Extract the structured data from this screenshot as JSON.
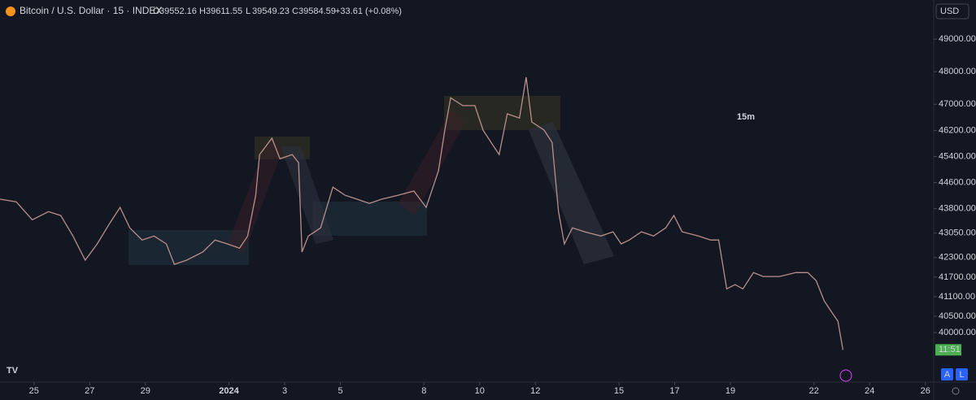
{
  "chart_data": {
    "type": "line",
    "title": "Bitcoin / U.S. Dollar · 15 · INDEX",
    "ohlc_labels": [
      "O",
      "H",
      "L",
      "C"
    ],
    "ohlc_values": [
      39552.16,
      39611.55,
      39549.23,
      39584.59
    ],
    "change": "+33.61 (+0.08%)",
    "currency": "USD",
    "annotation": "15m",
    "countdown": "11:51",
    "buttons": [
      "A",
      "L"
    ],
    "color": "#b98f8c",
    "x": [
      -1.22,
      -0.64,
      -0.06,
      0.52,
      0.96,
      1.4,
      1.84,
      2.27,
      2.71,
      3.09,
      3.44,
      3.88,
      4.31,
      4.75,
      5.04,
      5.48,
      6.06,
      6.5,
      6.94,
      7.38,
      7.67,
      7.96,
      8.1,
      8.54,
      8.83,
      9.27,
      9.5,
      9.62,
      9.85,
      10.29,
      10.73,
      11.17,
      11.6,
      12.04,
      12.48,
      13.06,
      13.64,
      14.08,
      14.52,
      14.75,
      14.96,
      15.39,
      15.83,
      16.12,
      16.41,
      16.7,
      16.99,
      17.43,
      17.67,
      17.87,
      18.31,
      18.6,
      18.83,
      19.04,
      19.33,
      19.77,
      20.35,
      20.79,
      21.08,
      21.37,
      21.81,
      22.24,
      22.68,
      22.97,
      23.27,
      23.85,
      24.29,
      24.58,
      24.87,
      25.17,
      25.45,
      25.83,
      26.18,
      26.76,
      27.35,
      27.78,
      28.08,
      28.37,
      28.66,
      28.86,
      29.04
    ],
    "values": [
      44090,
      44010,
      43460,
      43710,
      43590,
      42960,
      42220,
      42720,
      43340,
      43840,
      43210,
      42840,
      42960,
      42720,
      42090,
      42220,
      42470,
      42840,
      42720,
      42590,
      42960,
      44210,
      45460,
      45960,
      45330,
      45460,
      45210,
      42470,
      42960,
      43210,
      44460,
      44210,
      44090,
      43960,
      44090,
      44210,
      44340,
      43840,
      44960,
      46210,
      47200,
      46960,
      46960,
      46210,
      45830,
      45460,
      46710,
      46580,
      47830,
      46460,
      46210,
      45830,
      43710,
      42720,
      43210,
      43090,
      42960,
      43090,
      42720,
      42840,
      43090,
      42960,
      43210,
      43590,
      43090,
      42960,
      42840,
      42840,
      41340,
      41470,
      41340,
      41840,
      41720,
      41720,
      41840,
      41840,
      41590,
      40970,
      40600,
      40350,
      39470
    ],
    "xlim": [
      -1.22,
      32.3
    ],
    "ylim": [
      38480,
      50200
    ],
    "xticks": [
      {
        "value": 0,
        "label": "25"
      },
      {
        "value": 2,
        "label": "27"
      },
      {
        "value": 4,
        "label": "29"
      },
      {
        "value": 7,
        "label": "2024"
      },
      {
        "value": 9,
        "label": "3"
      },
      {
        "value": 11,
        "label": "5"
      },
      {
        "value": 14,
        "label": "8"
      },
      {
        "value": 16,
        "label": "10"
      },
      {
        "value": 18,
        "label": "12"
      },
      {
        "value": 21,
        "label": "15"
      },
      {
        "value": 23,
        "label": "17"
      },
      {
        "value": 25,
        "label": "19"
      },
      {
        "value": 28,
        "label": "22"
      },
      {
        "value": 30,
        "label": "24"
      },
      {
        "value": 32,
        "label": "26"
      }
    ],
    "yticks": [
      {
        "value": 40000,
        "label": "40000.00"
      },
      {
        "value": 40500,
        "label": "40500.00"
      },
      {
        "value": 41100,
        "label": "41100.00"
      },
      {
        "value": 41700,
        "label": "41700.00"
      },
      {
        "value": 42300,
        "label": "42300.00"
      },
      {
        "value": 43050,
        "label": "43050.00"
      },
      {
        "value": 43800,
        "label": "43800.00"
      },
      {
        "value": 44600,
        "label": "44600.00"
      },
      {
        "value": 45400,
        "label": "45400.00"
      },
      {
        "value": 46200,
        "label": "46200.00"
      },
      {
        "value": 47000,
        "label": "47000.00"
      },
      {
        "value": 48000,
        "label": "48000.00"
      },
      {
        "value": 49000,
        "label": "49000.00"
      }
    ]
  }
}
